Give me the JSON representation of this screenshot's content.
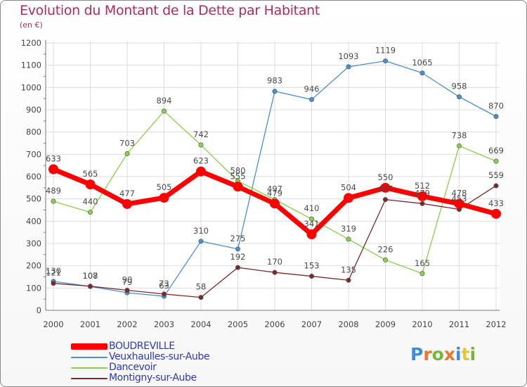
{
  "header": {
    "title": "Evolution du Montant de la Dette par Habitant",
    "subtitle": "(en €)"
  },
  "logo": {
    "letters": [
      {
        "char": "P",
        "color": "#3d8ed6"
      },
      {
        "char": "r",
        "color": "#e8782a"
      },
      {
        "char": "o",
        "color": "#74b83a"
      },
      {
        "char": "x",
        "color": "#e8782a"
      },
      {
        "char": "i",
        "color": "#3d8ed6"
      },
      {
        "char": "t",
        "color": "#e8c43a"
      },
      {
        "char": "i",
        "color": "#74b83a"
      }
    ]
  },
  "chart_data": {
    "type": "line",
    "x": [
      "2000",
      "2001",
      "2002",
      "2003",
      "2004",
      "2005",
      "2006",
      "2007",
      "2008",
      "2009",
      "2010",
      "2011",
      "2012"
    ],
    "ylim": [
      0,
      1200
    ],
    "yticks": [
      "0",
      "100",
      "200",
      "300",
      "400",
      "500",
      "600",
      "700",
      "800",
      "900",
      "1000",
      "1100",
      "1200"
    ],
    "grid": true,
    "legend_position": "bottom-left",
    "series": [
      {
        "name": "BOUDREVILLE",
        "color": "#ff0000",
        "values": [
          633,
          565,
          477,
          505,
          623,
          555,
          479,
          341,
          504,
          550,
          512,
          478,
          433
        ],
        "labels": [
          "633",
          "565",
          "477",
          "505",
          "623",
          "555",
          "479",
          "341",
          "504",
          "550",
          "512",
          "478",
          "433"
        ]
      },
      {
        "name": "Veuxhaulles-sur-Aube",
        "color": "#4a8fd0",
        "values": [
          130,
          107,
          79,
          63,
          310,
          275,
          983,
          946,
          1093,
          1119,
          1065,
          958,
          870
        ],
        "labels": [
          "130",
          "107",
          "79",
          "63",
          "310",
          "275",
          "983",
          "946",
          "1093",
          "1119",
          "1065",
          "958",
          "870"
        ]
      },
      {
        "name": "Dancevoir",
        "color": "#86d04a",
        "values": [
          489,
          440,
          703,
          894,
          742,
          580,
          497,
          410,
          319,
          226,
          165,
          738,
          669
        ],
        "labels": [
          "489",
          "440",
          "703",
          "894",
          "742",
          "580",
          "497",
          "410",
          "319",
          "226",
          "165",
          "738",
          "669"
        ]
      },
      {
        "name": "Montigny-sur-Aube",
        "color": "#7a2a2a",
        "values": [
          121,
          108,
          90,
          73,
          58,
          192,
          170,
          153,
          135,
          497,
          479,
          453,
          559
        ],
        "labels": [
          "121",
          "108",
          "90",
          "73",
          "58",
          "192",
          "170",
          "153",
          "135",
          "497",
          "479",
          "453",
          "559"
        ]
      }
    ]
  }
}
